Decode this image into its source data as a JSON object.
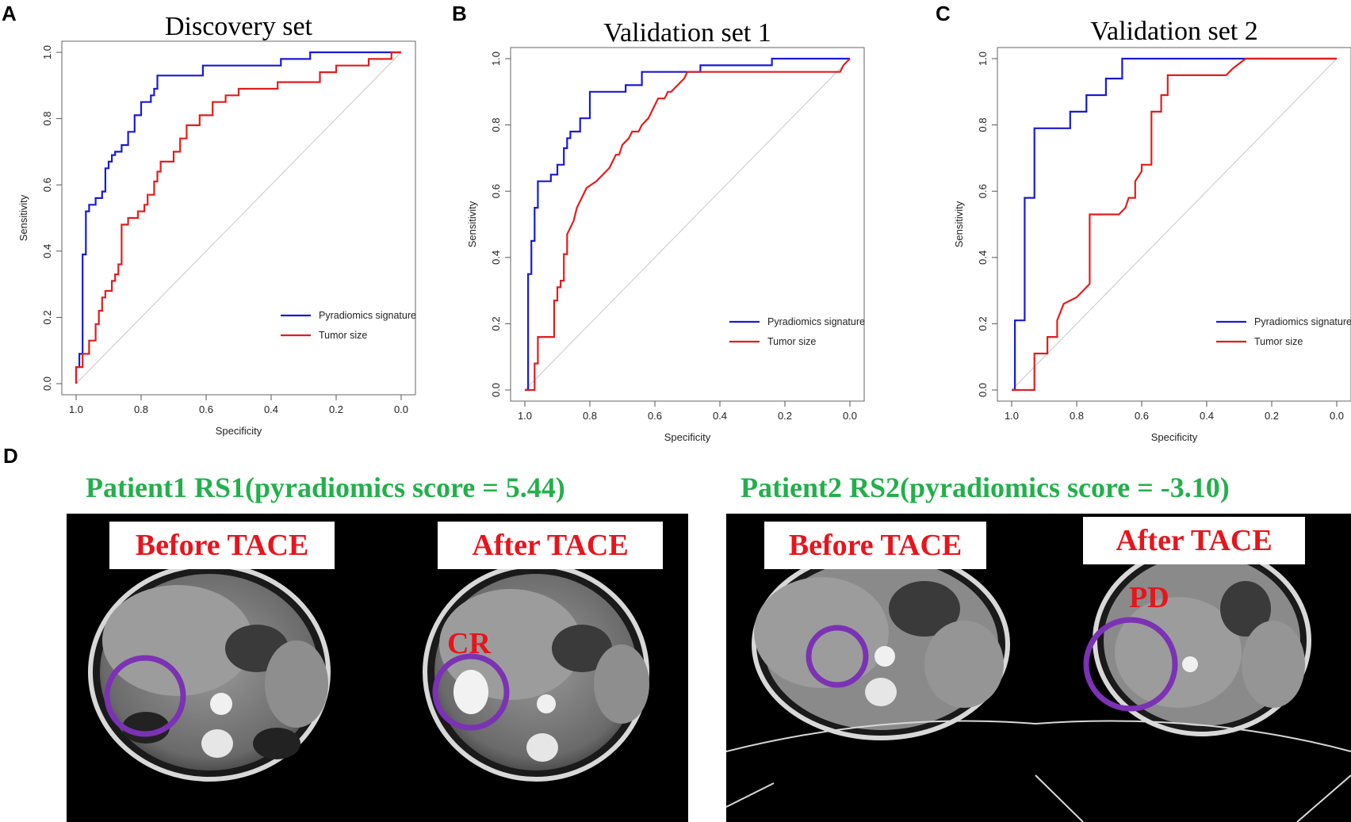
{
  "chart_data": [
    {
      "type": "line",
      "panel": "A",
      "title": "Discovery set",
      "xlabel": "Specificity",
      "ylabel": "Sensitivity",
      "xlim": [
        1.0,
        0.0
      ],
      "ylim": [
        0.0,
        1.0
      ],
      "xticks": [
        "1.0",
        "0.8",
        "0.6",
        "0.4",
        "0.2",
        "0.0"
      ],
      "yticks": [
        "0.0",
        "0.2",
        "0.4",
        "0.6",
        "0.8",
        "1.0"
      ],
      "legend": "bottom-right",
      "series": [
        {
          "name": "Pyradiomics signature",
          "color": "#1a1ad6",
          "x": [
            1.0,
            1.0,
            0.99,
            0.99,
            0.98,
            0.98,
            0.97,
            0.97,
            0.96,
            0.96,
            0.94,
            0.94,
            0.92,
            0.92,
            0.91,
            0.91,
            0.9,
            0.9,
            0.89,
            0.89,
            0.88,
            0.88,
            0.86,
            0.86,
            0.84,
            0.84,
            0.82,
            0.82,
            0.8,
            0.8,
            0.77,
            0.77,
            0.76,
            0.76,
            0.75,
            0.75,
            0.74,
            0.74,
            0.61,
            0.61,
            0.37,
            0.37,
            0.28,
            0.28,
            0.0
          ],
          "y": [
            0.0,
            0.05,
            0.05,
            0.09,
            0.09,
            0.39,
            0.39,
            0.52,
            0.52,
            0.54,
            0.54,
            0.56,
            0.56,
            0.58,
            0.58,
            0.65,
            0.65,
            0.67,
            0.67,
            0.69,
            0.69,
            0.7,
            0.7,
            0.72,
            0.72,
            0.76,
            0.76,
            0.81,
            0.81,
            0.85,
            0.85,
            0.87,
            0.87,
            0.89,
            0.89,
            0.93,
            0.93,
            0.93,
            0.93,
            0.96,
            0.96,
            0.98,
            0.98,
            1.0,
            1.0
          ]
        },
        {
          "name": "Tumor size",
          "color": "#e01e1e",
          "x": [
            1.0,
            1.0,
            0.98,
            0.98,
            0.96,
            0.96,
            0.94,
            0.94,
            0.93,
            0.93,
            0.92,
            0.92,
            0.91,
            0.91,
            0.89,
            0.89,
            0.88,
            0.88,
            0.87,
            0.87,
            0.86,
            0.86,
            0.84,
            0.84,
            0.81,
            0.81,
            0.79,
            0.79,
            0.78,
            0.78,
            0.76,
            0.76,
            0.75,
            0.75,
            0.74,
            0.74,
            0.7,
            0.7,
            0.68,
            0.68,
            0.66,
            0.66,
            0.62,
            0.62,
            0.58,
            0.58,
            0.54,
            0.54,
            0.5,
            0.5,
            0.38,
            0.38,
            0.25,
            0.25,
            0.2,
            0.2,
            0.1,
            0.1,
            0.03,
            0.03,
            0.0
          ],
          "y": [
            0.0,
            0.05,
            0.05,
            0.09,
            0.09,
            0.13,
            0.13,
            0.18,
            0.18,
            0.22,
            0.22,
            0.26,
            0.26,
            0.28,
            0.28,
            0.31,
            0.31,
            0.33,
            0.33,
            0.36,
            0.36,
            0.48,
            0.48,
            0.5,
            0.5,
            0.52,
            0.52,
            0.54,
            0.54,
            0.57,
            0.57,
            0.61,
            0.61,
            0.64,
            0.64,
            0.67,
            0.67,
            0.7,
            0.7,
            0.74,
            0.74,
            0.78,
            0.78,
            0.81,
            0.81,
            0.85,
            0.85,
            0.87,
            0.87,
            0.89,
            0.89,
            0.91,
            0.91,
            0.94,
            0.94,
            0.96,
            0.96,
            0.98,
            0.98,
            1.0,
            1.0
          ]
        }
      ]
    },
    {
      "type": "line",
      "panel": "B",
      "title": "Validation set 1",
      "xlabel": "Specificity",
      "ylabel": "Sensitivity",
      "xlim": [
        1.0,
        0.0
      ],
      "ylim": [
        0.0,
        1.0
      ],
      "xticks": [
        "1.0",
        "0.8",
        "0.6",
        "0.4",
        "0.2",
        "0.0"
      ],
      "yticks": [
        "0.0",
        "0.2",
        "0.4",
        "0.6",
        "0.8",
        "1.0"
      ],
      "legend": "bottom-right",
      "series": [
        {
          "name": "Pyradiomics signature",
          "color": "#1a1ad6",
          "x": [
            1.0,
            0.99,
            0.99,
            0.98,
            0.98,
            0.97,
            0.97,
            0.96,
            0.96,
            0.94,
            0.94,
            0.92,
            0.92,
            0.9,
            0.9,
            0.88,
            0.88,
            0.87,
            0.87,
            0.86,
            0.86,
            0.85,
            0.85,
            0.83,
            0.83,
            0.8,
            0.8,
            0.69,
            0.69,
            0.64,
            0.64,
            0.59,
            0.59,
            0.46,
            0.46,
            0.24,
            0.24,
            0.0
          ],
          "y": [
            0.0,
            0.0,
            0.35,
            0.35,
            0.45,
            0.45,
            0.55,
            0.55,
            0.63,
            0.63,
            0.63,
            0.63,
            0.65,
            0.65,
            0.68,
            0.68,
            0.73,
            0.73,
            0.76,
            0.76,
            0.78,
            0.78,
            0.78,
            0.78,
            0.82,
            0.82,
            0.9,
            0.9,
            0.92,
            0.92,
            0.96,
            0.96,
            0.96,
            0.96,
            0.98,
            0.98,
            1.0,
            1.0
          ]
        },
        {
          "name": "Tumor size",
          "color": "#e01e1e",
          "x": [
            1.0,
            0.97,
            0.97,
            0.96,
            0.96,
            0.94,
            0.94,
            0.91,
            0.91,
            0.9,
            0.9,
            0.89,
            0.89,
            0.88,
            0.88,
            0.87,
            0.87,
            0.86,
            0.85,
            0.84,
            0.83,
            0.81,
            0.78,
            0.76,
            0.74,
            0.73,
            0.72,
            0.71,
            0.7,
            0.68,
            0.67,
            0.65,
            0.64,
            0.62,
            0.61,
            0.6,
            0.59,
            0.57,
            0.56,
            0.55,
            0.53,
            0.51,
            0.5,
            0.48,
            0.03,
            0.02,
            0.0
          ],
          "y": [
            0.0,
            0.0,
            0.08,
            0.08,
            0.16,
            0.16,
            0.16,
            0.16,
            0.27,
            0.27,
            0.31,
            0.31,
            0.33,
            0.33,
            0.41,
            0.41,
            0.47,
            0.49,
            0.51,
            0.55,
            0.57,
            0.61,
            0.63,
            0.65,
            0.67,
            0.69,
            0.71,
            0.71,
            0.74,
            0.76,
            0.78,
            0.78,
            0.8,
            0.82,
            0.84,
            0.86,
            0.88,
            0.88,
            0.9,
            0.9,
            0.92,
            0.94,
            0.96,
            0.96,
            0.96,
            0.98,
            1.0
          ]
        }
      ]
    },
    {
      "type": "line",
      "panel": "C",
      "title": "Validation set 2",
      "xlabel": "Specificity",
      "ylabel": "Sensitivity",
      "xlim": [
        1.0,
        0.0
      ],
      "ylim": [
        0.0,
        1.0
      ],
      "xticks": [
        "1.0",
        "0.8",
        "0.6",
        "0.4",
        "0.2",
        "0.0"
      ],
      "yticks": [
        "0.0",
        "0.2",
        "0.4",
        "0.6",
        "0.8",
        "1.0"
      ],
      "legend": "bottom-right",
      "series": [
        {
          "name": "Pyradiomics signature",
          "color": "#1a1ad6",
          "x": [
            1.0,
            0.99,
            0.99,
            0.96,
            0.96,
            0.93,
            0.93,
            0.82,
            0.82,
            0.77,
            0.77,
            0.71,
            0.71,
            0.66,
            0.66,
            0.64,
            0.64,
            0.28,
            0.0
          ],
          "y": [
            0.0,
            0.0,
            0.21,
            0.21,
            0.58,
            0.58,
            0.79,
            0.79,
            0.84,
            0.84,
            0.89,
            0.89,
            0.94,
            0.94,
            1.0,
            1.0,
            1.0,
            1.0,
            1.0
          ]
        },
        {
          "name": "Tumor size",
          "color": "#e01e1e",
          "x": [
            1.0,
            0.93,
            0.93,
            0.89,
            0.89,
            0.86,
            0.86,
            0.84,
            0.82,
            0.8,
            0.78,
            0.76,
            0.76,
            0.67,
            0.65,
            0.64,
            0.62,
            0.62,
            0.6,
            0.6,
            0.57,
            0.57,
            0.54,
            0.54,
            0.52,
            0.52,
            0.34,
            0.32,
            0.28,
            0.0
          ],
          "y": [
            0.0,
            0.0,
            0.11,
            0.11,
            0.16,
            0.16,
            0.21,
            0.26,
            0.27,
            0.28,
            0.3,
            0.32,
            0.53,
            0.53,
            0.55,
            0.58,
            0.58,
            0.63,
            0.66,
            0.68,
            0.68,
            0.84,
            0.84,
            0.89,
            0.89,
            0.95,
            0.95,
            0.97,
            1.0,
            1.0
          ]
        }
      ]
    }
  ],
  "panel_d": {
    "letter": "D",
    "patient1_title": "Patient1   RS1(pyradiomics score = 5.44)",
    "patient2_title": "Patient2   RS2(pyradiomics score = -3.10)",
    "before_label": "Before  TACE",
    "after_label": "After  TACE",
    "response_cr": "CR",
    "response_pd": "PD"
  }
}
